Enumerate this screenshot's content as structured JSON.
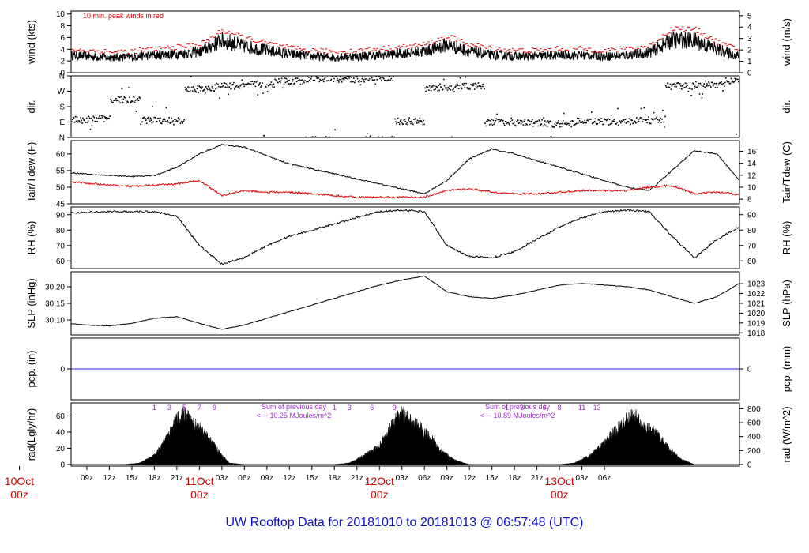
{
  "title": "UW Rooftop Data for 20181010  to  20181013 @ 06:57:48  (UTC)",
  "colors": {
    "title": "#1010c8",
    "peak": "#e00000",
    "dewpoint": "#e00000",
    "precip": "#2020d0",
    "annotation": "#a030d0",
    "date": "#cc0000",
    "series": "#000000"
  },
  "chart_data": [
    {
      "id": "wind",
      "type": "line",
      "ylabel": "wind (kts)",
      "ylabel_right": "wind (m/s)",
      "ylim": [
        0,
        10.5
      ],
      "yticks": [
        0,
        2,
        4,
        6,
        8,
        10
      ],
      "yticks_right": [
        0,
        1,
        2,
        3,
        4,
        5
      ],
      "right_scale": 0.5144,
      "note": "10 min. peak winds in red",
      "series": [
        {
          "x": [
            0,
            3,
            6,
            9,
            12,
            15,
            18,
            21,
            24,
            27,
            30,
            33,
            36,
            39,
            42,
            45,
            48,
            51,
            54,
            57,
            60,
            63,
            66,
            69,
            72,
            75,
            78,
            81,
            84,
            87,
            90
          ],
          "values": [
            3.0,
            2.8,
            2.6,
            2.7,
            3.0,
            3.2,
            3.5,
            5.5,
            4.5,
            3.8,
            3.2,
            2.8,
            2.6,
            2.8,
            3.0,
            3.3,
            3.6,
            4.8,
            3.6,
            3.0,
            2.8,
            2.8,
            3.0,
            3.0,
            2.8,
            3.0,
            3.4,
            5.6,
            5.5,
            4.0,
            2.8
          ]
        },
        {
          "x": [
            0,
            3,
            6,
            9,
            12,
            15,
            18,
            21,
            24,
            27,
            30,
            33,
            36,
            39,
            42,
            45,
            48,
            51,
            54,
            57,
            60,
            63,
            66,
            69,
            72,
            75,
            78,
            81,
            84,
            87,
            90
          ],
          "values": [
            3.8,
            3.6,
            3.4,
            3.5,
            3.9,
            4.2,
            4.6,
            7.0,
            5.8,
            4.8,
            4.0,
            3.6,
            3.4,
            3.6,
            3.9,
            4.2,
            4.6,
            6.0,
            4.6,
            3.9,
            3.6,
            3.6,
            3.9,
            3.9,
            3.6,
            3.9,
            4.4,
            7.4,
            7.2,
            5.0,
            3.6
          ]
        }
      ]
    },
    {
      "id": "dir",
      "type": "scatter",
      "ylabel": "dir.",
      "ylabel_right": "dir.",
      "ylim": [
        0,
        360
      ],
      "yticks": [
        0,
        90,
        180,
        270,
        360
      ],
      "ytick_labels": [
        "N",
        "E",
        "S",
        "W",
        "N"
      ],
      "segments": [
        [
          0,
          105
        ],
        [
          4,
          110
        ],
        [
          6,
          220
        ],
        [
          10,
          100
        ],
        [
          14,
          95
        ],
        [
          16,
          280
        ],
        [
          20,
          300
        ],
        [
          24,
          310
        ],
        [
          28,
          330
        ],
        [
          32,
          345
        ],
        [
          36,
          340
        ],
        [
          40,
          350
        ],
        [
          44,
          95
        ],
        [
          48,
          285
        ],
        [
          52,
          300
        ],
        [
          56,
          90
        ],
        [
          60,
          85
        ],
        [
          64,
          80
        ],
        [
          68,
          95
        ],
        [
          72,
          90
        ],
        [
          76,
          100
        ],
        [
          80,
          300
        ],
        [
          84,
          310
        ],
        [
          88,
          330
        ],
        [
          90,
          340
        ]
      ]
    },
    {
      "id": "temp",
      "type": "line",
      "ylabel": "Tair/Tdew (F)",
      "ylabel_right": "Tair/Tdew (C)",
      "ylim": [
        45,
        64
      ],
      "yticks": [
        45,
        50,
        55,
        60
      ],
      "yticks_right": [
        8,
        10,
        12,
        14,
        16
      ],
      "series": [
        {
          "x": [
            0,
            3,
            6,
            9,
            12,
            15,
            18,
            21,
            24,
            27,
            30,
            33,
            36,
            39,
            42,
            45,
            48,
            51,
            54,
            57,
            60,
            63,
            66,
            69,
            72,
            75,
            78,
            81,
            84,
            87,
            90
          ],
          "values": [
            54.5,
            54,
            53.5,
            53.2,
            53.5,
            56,
            60,
            62.8,
            62,
            59.5,
            57,
            55.5,
            54,
            52.5,
            51,
            49.5,
            48,
            52,
            58.5,
            61.5,
            60,
            58,
            56,
            54,
            52,
            50,
            49,
            55,
            61,
            60,
            52
          ]
        },
        {
          "x": [
            0,
            3,
            6,
            9,
            12,
            15,
            18,
            21,
            24,
            27,
            30,
            33,
            36,
            39,
            42,
            45,
            48,
            51,
            54,
            57,
            60,
            63,
            66,
            69,
            72,
            75,
            78,
            81,
            84,
            87,
            90
          ],
          "values": [
            51.8,
            51.2,
            50.6,
            50.3,
            50.6,
            51,
            52,
            47.5,
            49,
            48.5,
            48.5,
            48,
            47.5,
            47,
            47,
            47,
            47,
            49,
            49.5,
            48.5,
            48,
            48,
            48.5,
            49,
            49,
            49,
            50,
            50.5,
            48,
            48.5,
            47.8
          ]
        }
      ]
    },
    {
      "id": "rh",
      "type": "line",
      "ylabel": "RH (%)",
      "ylabel_right": "RH (%)",
      "ylim": [
        55,
        95
      ],
      "yticks": [
        60,
        70,
        80,
        90
      ],
      "yticks_right": [
        60,
        70,
        80,
        90
      ],
      "series": [
        {
          "x": [
            0,
            3,
            6,
            9,
            12,
            15,
            18,
            21,
            24,
            27,
            30,
            33,
            36,
            39,
            42,
            45,
            48,
            51,
            54,
            57,
            60,
            63,
            66,
            69,
            72,
            75,
            78,
            81,
            84,
            87,
            90
          ],
          "values": [
            91,
            91.5,
            92,
            92,
            92,
            89,
            70,
            58,
            62,
            70,
            76,
            80,
            84,
            88,
            92,
            93,
            92,
            70,
            63,
            62,
            66,
            74,
            82,
            88,
            92,
            93,
            92,
            76,
            62,
            74,
            82
          ]
        }
      ]
    },
    {
      "id": "slp",
      "type": "line",
      "ylabel": "SLP (inHg)",
      "ylabel_right": "SLP (hPa)",
      "ylim": [
        30.055,
        30.245
      ],
      "yticks": [
        30.1,
        30.15,
        30.2
      ],
      "ytick_labels": [
        "30.10",
        "30.15",
        "30.20"
      ],
      "yticks_right": [
        1018,
        1019,
        1020,
        1021,
        1022,
        1023
      ],
      "series": [
        {
          "x": [
            0,
            3,
            6,
            9,
            12,
            15,
            18,
            21,
            24,
            27,
            30,
            33,
            36,
            39,
            42,
            45,
            48,
            51,
            54,
            57,
            60,
            63,
            66,
            69,
            72,
            75,
            78,
            81,
            84,
            87,
            90
          ],
          "values": [
            30.09,
            30.085,
            30.082,
            30.09,
            30.105,
            30.11,
            30.09,
            30.072,
            30.085,
            30.105,
            30.125,
            30.145,
            30.165,
            30.185,
            30.205,
            30.22,
            30.232,
            30.185,
            30.17,
            30.165,
            30.175,
            30.19,
            30.205,
            30.21,
            30.205,
            30.2,
            30.19,
            30.17,
            30.15,
            30.17,
            30.21
          ]
        }
      ]
    },
    {
      "id": "pcp",
      "type": "line",
      "ylabel": "pcp. (in)",
      "ylabel_right": "pcp. (mm)",
      "ylim": [
        -1,
        1
      ],
      "yticks": [
        0
      ],
      "yticks_right": [
        0
      ],
      "series": [
        {
          "x": [
            0,
            90
          ],
          "values": [
            0,
            0
          ]
        }
      ]
    },
    {
      "id": "rad",
      "type": "area",
      "ylabel": "rad(Lgly/hr)",
      "ylabel_right": "rad (W/m^2)",
      "ylim": [
        -2,
        76
      ],
      "yticks": [
        0,
        20,
        40,
        60
      ],
      "yticks_right": [
        0,
        200,
        400,
        600,
        800
      ],
      "right_scale": 11.63,
      "series": [
        {
          "x": [
            0,
            3,
            6,
            8,
            10,
            12,
            13,
            14,
            15,
            16,
            17,
            18,
            19,
            20,
            21,
            22,
            24,
            30,
            36,
            38,
            40,
            42,
            43,
            44,
            45,
            46,
            47,
            48,
            49,
            50,
            52,
            54,
            60,
            66,
            68,
            70,
            72,
            73,
            74,
            75,
            76,
            77,
            78,
            79,
            80,
            82,
            84,
            90
          ],
          "values": [
            0,
            0,
            0,
            0,
            2,
            12,
            25,
            40,
            60,
            68,
            55,
            48,
            38,
            25,
            12,
            2,
            0,
            0,
            0,
            2,
            12,
            25,
            40,
            56,
            68,
            58,
            52,
            44,
            34,
            20,
            6,
            0,
            0,
            0,
            2,
            12,
            28,
            40,
            50,
            62,
            66,
            50,
            48,
            40,
            28,
            8,
            0,
            0
          ]
        }
      ],
      "labels_day1": [
        "1",
        "3",
        "5",
        "7",
        "9"
      ],
      "labels_day2": [
        "1",
        "3",
        "6",
        "9"
      ],
      "labels_day3": [
        "1",
        "3",
        "6",
        "8",
        "11",
        "13"
      ],
      "sum_label": "Sum of previous day",
      "sum_value_1": "<--- 10.25 MJoules/m^2",
      "sum_value_2": "<--- 10.89 MJoules/m^2"
    }
  ],
  "x_axis": {
    "x_start_hour": 6.9,
    "x_end_hour": 96,
    "tick_labels": [
      "09z",
      "12z",
      "15z",
      "18z",
      "21z",
      "03z",
      "06z",
      "09z",
      "12z",
      "15z",
      "18z",
      "21z",
      "03z",
      "06z",
      "09z",
      "12z",
      "15z",
      "18z",
      "21z",
      "03z",
      "06z"
    ],
    "tick_hours": [
      9,
      12,
      15,
      18,
      21,
      27,
      30,
      33,
      36,
      39,
      42,
      45,
      51,
      54,
      57,
      60,
      63,
      66,
      69,
      75,
      78
    ],
    "date_labels": [
      {
        "hour": 0,
        "day": "10Oct",
        "zz": "00z"
      },
      {
        "hour": 24,
        "day": "11Oct",
        "zz": "00z"
      },
      {
        "hour": 48,
        "day": "12Oct",
        "zz": "00z"
      },
      {
        "hour": 72,
        "day": "13Oct",
        "zz": "00z"
      }
    ]
  }
}
